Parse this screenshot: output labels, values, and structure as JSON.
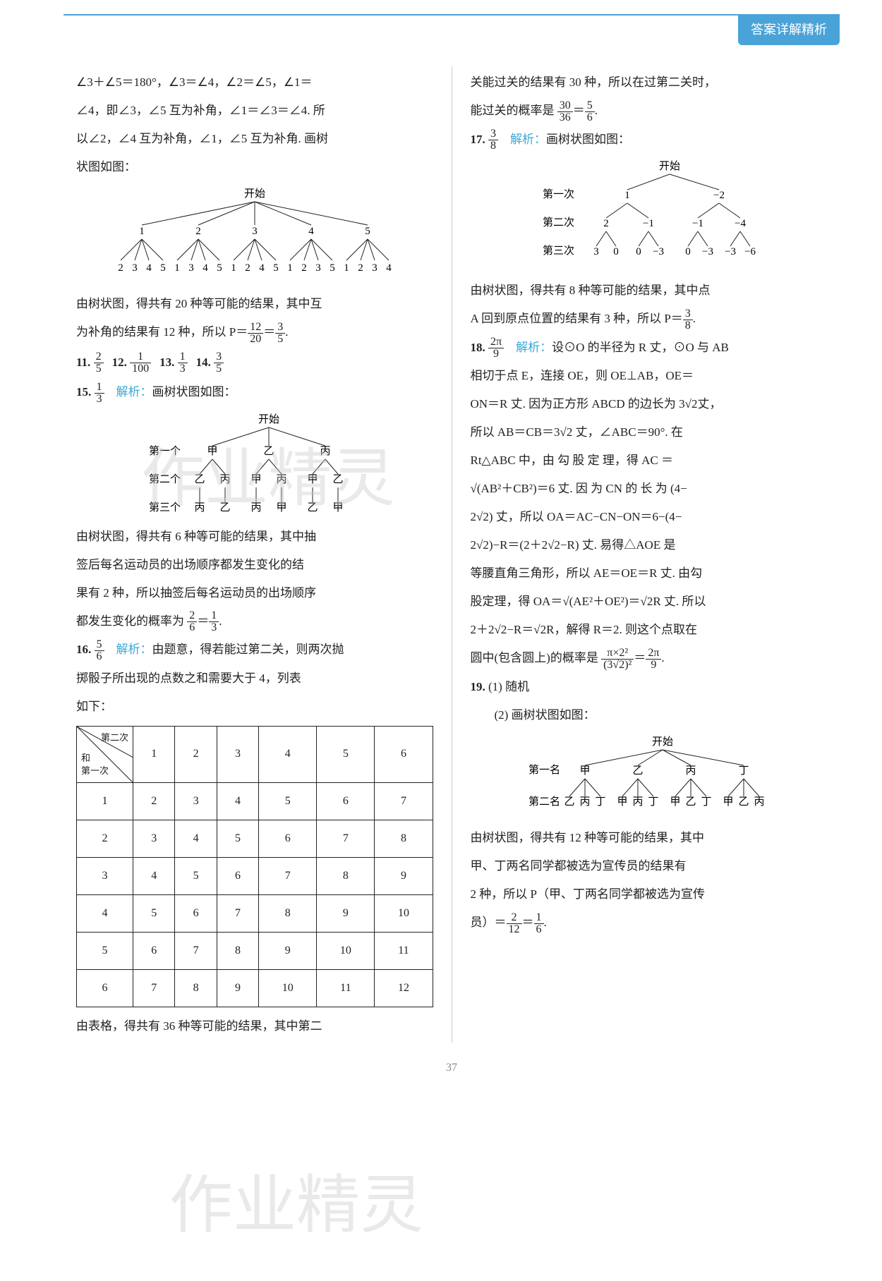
{
  "header": {
    "badge": "答案详解精析"
  },
  "left": {
    "para1_l1": "∠3＋∠5＝180°，∠3＝∠4，∠2＝∠5，∠1＝",
    "para1_l2": "∠4，即∠3，∠5 互为补角，∠1＝∠3＝∠4. 所",
    "para1_l3": "以∠2，∠4 互为补角，∠1，∠5 互为补角. 画树",
    "para1_l4": "状图如图：",
    "tree1": {
      "root": "开始",
      "lvl1": [
        "1",
        "2",
        "3",
        "4",
        "5"
      ],
      "lvl2": [
        [
          "2",
          "3",
          "4",
          "5"
        ],
        [
          "1",
          "3",
          "4",
          "5"
        ],
        [
          "1",
          "2",
          "4",
          "5"
        ],
        [
          "1",
          "2",
          "3",
          "5"
        ],
        [
          "1",
          "2",
          "3",
          "4"
        ]
      ]
    },
    "para2_l1": "由树状图，得共有 20 种等可能的结果，其中互",
    "para2_l2_pre": "为补角的结果有 12 种，所以 P＝",
    "para2_frac1": {
      "n": "12",
      "d": "20"
    },
    "para2_eq": "＝",
    "para2_frac2": {
      "n": "3",
      "d": "5"
    },
    "para2_end": ".",
    "q11_num": "11.",
    "q11_frac": {
      "n": "2",
      "d": "5"
    },
    "q12_num": "12.",
    "q12_frac": {
      "n": "1",
      "d": "100"
    },
    "q13_num": "13.",
    "q13_frac": {
      "n": "1",
      "d": "3"
    },
    "q14_num": "14.",
    "q14_frac": {
      "n": "3",
      "d": "5"
    },
    "q15_num": "15.",
    "q15_frac": {
      "n": "1",
      "d": "3"
    },
    "q15_label": "解析：",
    "q15_text": "画树状图如图：",
    "tree2": {
      "root": "开始",
      "rows": [
        "第一个",
        "第二个",
        "第三个"
      ],
      "lvl1": [
        "甲",
        "乙",
        "丙"
      ],
      "lvl2": [
        [
          "乙",
          "丙"
        ],
        [
          "甲",
          "丙"
        ],
        [
          "甲",
          "乙"
        ]
      ],
      "lvl3": [
        [
          "丙",
          "乙"
        ],
        [
          "丙",
          "甲"
        ],
        [
          "乙",
          "甲"
        ]
      ]
    },
    "q15_p1": "由树状图，得共有 6 种等可能的结果，其中抽",
    "q15_p2": "签后每名运动员的出场顺序都发生变化的结",
    "q15_p3": "果有 2 种，所以抽签后每名运动员的出场顺序",
    "q15_p4_pre": "都发生变化的概率为 ",
    "q15_frac1": {
      "n": "2",
      "d": "6"
    },
    "q15_eq": "＝",
    "q15_frac2": {
      "n": "1",
      "d": "3"
    },
    "q15_end": ".",
    "q16_num": "16.",
    "q16_frac": {
      "n": "5",
      "d": "6"
    },
    "q16_label": "解析：",
    "q16_text_l1": "由题意，得若能过第二关，则两次抛",
    "q16_text_l2": "掷骰子所出现的点数之和需要大于 4，列表",
    "q16_text_l3": "如下：",
    "table": {
      "corner_labels": [
        "第二次",
        "和",
        "第一次"
      ],
      "cols": [
        "1",
        "2",
        "3",
        "4",
        "5",
        "6"
      ],
      "rows": [
        "1",
        "2",
        "3",
        "4",
        "5",
        "6"
      ],
      "cells": [
        [
          "2",
          "3",
          "4",
          "5",
          "6",
          "7"
        ],
        [
          "3",
          "4",
          "5",
          "6",
          "7",
          "8"
        ],
        [
          "4",
          "5",
          "6",
          "7",
          "8",
          "9"
        ],
        [
          "5",
          "6",
          "7",
          "8",
          "9",
          "10"
        ],
        [
          "6",
          "7",
          "8",
          "9",
          "10",
          "11"
        ],
        [
          "7",
          "8",
          "9",
          "10",
          "11",
          "12"
        ]
      ]
    },
    "q16_p_last": "由表格，得共有 36 种等可能的结果，其中第二"
  },
  "right": {
    "para0_l1": "关能过关的结果有 30 种，所以在过第二关时，",
    "para0_l2_pre": "能过关的概率是 ",
    "para0_frac1": {
      "n": "30",
      "d": "36"
    },
    "para0_eq": "＝",
    "para0_frac2": {
      "n": "5",
      "d": "6"
    },
    "para0_end": ".",
    "q17_num": "17.",
    "q17_frac": {
      "n": "3",
      "d": "8"
    },
    "q17_label": "解析：",
    "q17_text": "画树状图如图：",
    "tree3": {
      "root": "开始",
      "rows": [
        "第一次",
        "第二次",
        "第三次"
      ],
      "lvl1": [
        "1",
        "−2"
      ],
      "lvl2": [
        [
          "2",
          "−1"
        ],
        [
          "−1",
          "−4"
        ]
      ],
      "lvl3": [
        [
          "3",
          "0"
        ],
        [
          "0",
          "−3"
        ],
        [
          "0",
          "−3"
        ],
        [
          "−3",
          "−6"
        ]
      ]
    },
    "q17_p1": "由树状图，得共有 8 种等可能的结果，其中点",
    "q17_p2_pre": "A 回到原点位置的结果有 3 种，所以 P＝",
    "q17_p2_frac": {
      "n": "3",
      "d": "8"
    },
    "q17_p2_end": ".",
    "q18_num": "18.",
    "q18_frac": {
      "n": "2π",
      "d": "9"
    },
    "q18_label": "解析：",
    "q18_l1": "设⊙O 的半径为 R 丈，⊙O 与 AB",
    "q18_l2": "相切于点 E，连接 OE，则 OE⊥AB，OE＝",
    "q18_l3_pre": "ON＝R 丈. 因为正方形 ABCD 的边长为 3",
    "q18_l3_sqrt": "√2",
    "q18_l3_post": "丈，",
    "q18_l4_pre": "所以 AB＝CB＝3",
    "q18_l4_sqrt": "√2",
    "q18_l4_post": " 丈，∠ABC＝90°. 在",
    "q18_l5": "Rt△ABC 中，由 勾 股 定 理，得 AC ＝",
    "q18_l6_pre": "",
    "q18_l6_sqrt": "√(AB²＋CB²)",
    "q18_l6_post": "＝6 丈. 因 为 CN 的 长 为 (4−",
    "q18_l7_pre": "2",
    "q18_l7_sqrt": "√2",
    "q18_l7_post": ") 丈，所以 OA＝AC−CN−ON＝6−(4−",
    "q18_l8_pre": "2",
    "q18_l8_sqrt": "√2",
    "q18_l8_mid": ")−R＝(2＋2",
    "q18_l8_sqrt2": "√2",
    "q18_l8_post": "−R) 丈. 易得△AOE 是",
    "q18_l9": "等腰直角三角形，所以 AE＝OE＝R 丈. 由勾",
    "q18_l10_pre": "股定理，得 OA＝",
    "q18_l10_sqrt": "√(AE²＋OE²)",
    "q18_l10_mid": "＝",
    "q18_l10_sqrt2": "√2",
    "q18_l10_post": "R 丈. 所以",
    "q18_l11_pre": "2＋2",
    "q18_l11_sqrt": "√2",
    "q18_l11_mid": "−R＝",
    "q18_l11_sqrt2": "√2",
    "q18_l11_post": "R，解得 R＝2. 则这个点取在",
    "q18_l12_pre": "圆中(包含圆上)的概率是 ",
    "q18_big_frac": {
      "n": "π×2²",
      "d": "(3√2)²"
    },
    "q18_eq": "＝",
    "q18_res_frac": {
      "n": "2π",
      "d": "9"
    },
    "q18_end": ".",
    "q19_num": "19.",
    "q19_1": "(1) 随机",
    "q19_2": "(2) 画树状图如图：",
    "tree4": {
      "root": "开始",
      "rows": [
        "第一名",
        "第二名"
      ],
      "lvl1": [
        "甲",
        "乙",
        "丙",
        "丁"
      ],
      "lvl2": [
        [
          "乙",
          "丙",
          "丁"
        ],
        [
          "甲",
          "丙",
          "丁"
        ],
        [
          "甲",
          "乙",
          "丁"
        ],
        [
          "甲",
          "乙",
          "丙"
        ]
      ]
    },
    "q19_p1": "由树状图，得共有 12 种等可能的结果，其中",
    "q19_p2": "甲、丁两名同学都被选为宣传员的结果有",
    "q19_p3": "2 种，所以 P（甲、丁两名同学都被选为宣传",
    "q19_p4_pre": "员）＝",
    "q19_frac1": {
      "n": "2",
      "d": "12"
    },
    "q19_eq": "＝",
    "q19_frac2": {
      "n": "1",
      "d": "6"
    },
    "q19_end": "."
  },
  "pagenum": "37",
  "watermarks": {
    "wm1": "作业精灵",
    "wm2": "作业精灵"
  }
}
